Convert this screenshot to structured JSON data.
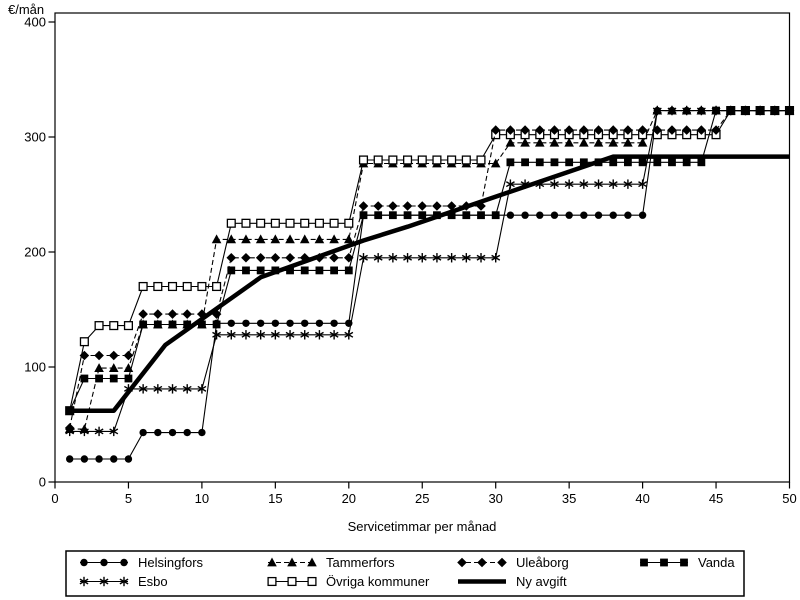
{
  "labels": {
    "y_unit": "€/mån",
    "x_title": "Servicetimmar per månad"
  },
  "chart_data": {
    "type": "line",
    "subtype": "step-function",
    "title": "",
    "ylabel": "€/mån",
    "xlabel": "Servicetimmar per månad",
    "xlim": [
      0,
      50
    ],
    "ylim": [
      0,
      400
    ],
    "x_ticks": [
      0,
      5,
      10,
      15,
      20,
      25,
      30,
      35,
      40,
      45,
      50
    ],
    "y_ticks": [
      0,
      100,
      200,
      300,
      400
    ],
    "grid": false,
    "legend_position": "bottom",
    "colors": {
      "foreground": "#000000",
      "background": "#ffffff"
    },
    "series": [
      {
        "name": "Helsingfors",
        "marker": "circle",
        "line": "solid",
        "width": 1.1,
        "steps": [
          [
            1,
            5,
            20
          ],
          [
            6,
            10,
            43
          ],
          [
            11,
            20,
            138
          ],
          [
            21,
            40,
            232
          ],
          [
            41,
            50,
            323
          ]
        ]
      },
      {
        "name": "Esbo",
        "marker": "asterisk",
        "line": "solid",
        "width": 1.1,
        "steps": [
          [
            1,
            4,
            44
          ],
          [
            5,
            10,
            81
          ],
          [
            11,
            20,
            128
          ],
          [
            21,
            30,
            195
          ],
          [
            31,
            40,
            259
          ],
          [
            41,
            50,
            323
          ]
        ]
      },
      {
        "name": "Tammerfors",
        "marker": "triangle",
        "line": "dashed",
        "width": 1.1,
        "steps": [
          [
            1,
            2,
            46
          ],
          [
            3,
            5,
            99
          ],
          [
            6,
            10,
            137
          ],
          [
            11,
            20,
            211
          ],
          [
            21,
            30,
            277
          ],
          [
            31,
            40,
            295
          ],
          [
            41,
            50,
            323
          ]
        ]
      },
      {
        "name": "Övriga kommuner",
        "marker": "open-square",
        "line": "solid",
        "width": 1.1,
        "steps": [
          [
            1,
            1,
            62
          ],
          [
            2,
            2,
            122
          ],
          [
            3,
            5,
            136
          ],
          [
            6,
            11,
            170
          ],
          [
            12,
            20,
            225
          ],
          [
            21,
            29,
            280
          ],
          [
            30,
            45,
            302
          ],
          [
            46,
            50,
            323
          ]
        ]
      },
      {
        "name": "Uleåborg",
        "marker": "diamond",
        "line": "dashed",
        "width": 1.1,
        "steps": [
          [
            1,
            1,
            47
          ],
          [
            2,
            5,
            110
          ],
          [
            6,
            11,
            146
          ],
          [
            12,
            20,
            195
          ],
          [
            21,
            29,
            240
          ],
          [
            30,
            45,
            306
          ],
          [
            46,
            50,
            323
          ]
        ]
      },
      {
        "name": "Vanda",
        "marker": "square",
        "line": "solid",
        "width": 1.1,
        "steps": [
          [
            1,
            1,
            62
          ],
          [
            2,
            5,
            90
          ],
          [
            6,
            11,
            137
          ],
          [
            12,
            20,
            184
          ],
          [
            21,
            30,
            232
          ],
          [
            31,
            44,
            278
          ],
          [
            45,
            50,
            323
          ]
        ]
      },
      {
        "name": "Ny avgift",
        "marker": "none",
        "line": "solid",
        "width": 4.5,
        "points": [
          [
            1,
            62
          ],
          [
            4,
            62
          ],
          [
            7.5,
            119
          ],
          [
            14,
            178
          ],
          [
            21,
            210
          ],
          [
            24,
            222
          ],
          [
            38,
            283
          ],
          [
            50,
            283
          ]
        ]
      }
    ]
  },
  "legend": {
    "columns": [
      [
        "Helsingfors",
        "Esbo"
      ],
      [
        "Tammerfors",
        "Övriga kommuner"
      ],
      [
        "Uleåborg",
        "Ny avgift"
      ],
      [
        "Vanda"
      ]
    ]
  }
}
